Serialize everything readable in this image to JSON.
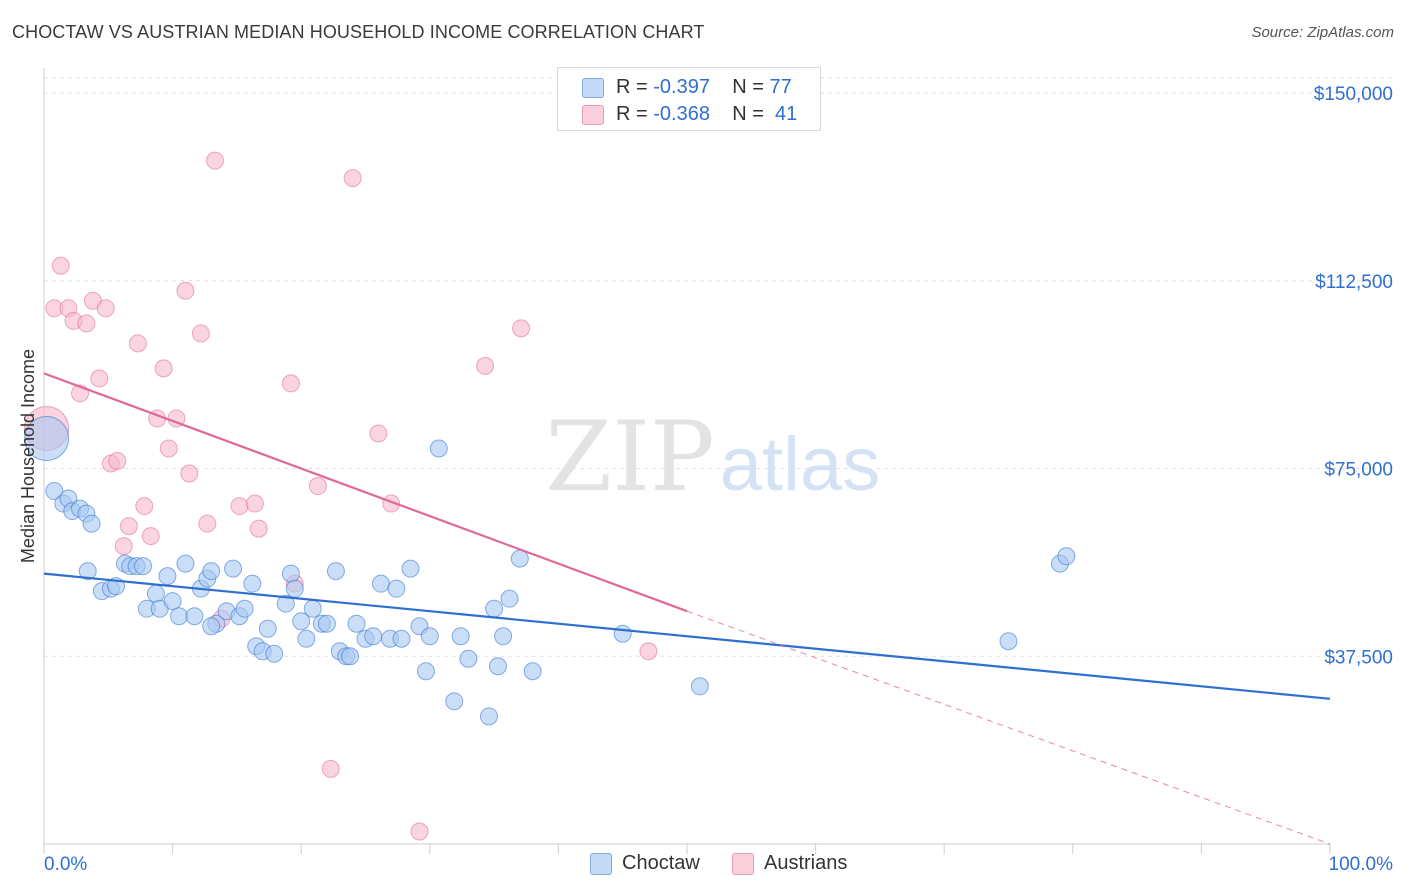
{
  "title": "CHOCTAW VS AUSTRIAN MEDIAN HOUSEHOLD INCOME CORRELATION CHART",
  "source": "Source: ZipAtlas.com",
  "watermark": {
    "zip": "ZIP",
    "atlas": "atlas"
  },
  "legend": {
    "rows": [
      {
        "r_label": "R = ",
        "r_value": "-0.397",
        "n_label": "N = ",
        "n_value": "77",
        "color": "#a9c8f2"
      },
      {
        "r_label": "R = ",
        "r_value": "-0.368",
        "n_label": "N = ",
        "n_value": "41",
        "color": "#f6b8c9"
      }
    ]
  },
  "bottom_legend": [
    {
      "label": "Choctaw",
      "color": "#a9c8f2"
    },
    {
      "label": "Austrians",
      "color": "#f6b8c9"
    }
  ],
  "chart_data": {
    "type": "scatter",
    "title": "CHOCTAW VS AUSTRIAN MEDIAN HOUSEHOLD INCOME CORRELATION CHART",
    "xlabel": "",
    "ylabel": "Median Household Income",
    "xlim": [
      0,
      100
    ],
    "ylim": [
      0,
      155000
    ],
    "x_tick_labels": [
      "0.0%",
      "100.0%"
    ],
    "y_ticks": [
      37500,
      75000,
      112500,
      150000
    ],
    "y_tick_labels": [
      "$37,500",
      "$75,000",
      "$112,500",
      "$150,000"
    ],
    "grid": true,
    "legend_position": "top-center",
    "series": [
      {
        "name": "Choctaw",
        "color": "#2f6fd0",
        "fill": "#a9c8f2",
        "trend": {
          "x": [
            0,
            100
          ],
          "y": [
            54000,
            29000
          ],
          "style": "solid"
        },
        "points": [
          [
            0.2,
            81000
          ],
          [
            0.8,
            70500
          ],
          [
            1.5,
            68000
          ],
          [
            1.9,
            69000
          ],
          [
            2.2,
            66500
          ],
          [
            2.8,
            67000
          ],
          [
            3.3,
            66000
          ],
          [
            3.7,
            64000
          ],
          [
            3.4,
            54500
          ],
          [
            4.5,
            50500
          ],
          [
            5.2,
            51000
          ],
          [
            5.6,
            51500
          ],
          [
            6.3,
            56000
          ],
          [
            6.7,
            55500
          ],
          [
            7.2,
            55500
          ],
          [
            7.7,
            55500
          ],
          [
            8.0,
            47000
          ],
          [
            8.7,
            50000
          ],
          [
            9.0,
            47000
          ],
          [
            9.6,
            53500
          ],
          [
            10.0,
            48500
          ],
          [
            10.5,
            45500
          ],
          [
            11.0,
            56000
          ],
          [
            11.7,
            45500
          ],
          [
            12.2,
            51000
          ],
          [
            12.7,
            53000
          ],
          [
            13.0,
            54500
          ],
          [
            13.4,
            44000
          ],
          [
            14.2,
            46500
          ],
          [
            14.7,
            55000
          ],
          [
            15.2,
            45500
          ],
          [
            15.6,
            47000
          ],
          [
            16.2,
            52000
          ],
          [
            16.5,
            39500
          ],
          [
            17.0,
            38500
          ],
          [
            17.4,
            43000
          ],
          [
            17.9,
            38000
          ],
          [
            18.8,
            48000
          ],
          [
            19.2,
            54000
          ],
          [
            19.5,
            51000
          ],
          [
            20.0,
            44500
          ],
          [
            20.4,
            41000
          ],
          [
            20.9,
            47000
          ],
          [
            21.6,
            44000
          ],
          [
            22.0,
            44000
          ],
          [
            22.7,
            54500
          ],
          [
            23.0,
            38500
          ],
          [
            23.5,
            37500
          ],
          [
            23.8,
            37500
          ],
          [
            24.3,
            44000
          ],
          [
            25.0,
            41000
          ],
          [
            25.6,
            41500
          ],
          [
            26.2,
            52000
          ],
          [
            26.9,
            41000
          ],
          [
            27.4,
            51000
          ],
          [
            27.8,
            41000
          ],
          [
            28.5,
            55000
          ],
          [
            29.2,
            43500
          ],
          [
            29.7,
            34500
          ],
          [
            30.0,
            41500
          ],
          [
            30.7,
            79000
          ],
          [
            31.9,
            28500
          ],
          [
            32.4,
            41500
          ],
          [
            33.0,
            37000
          ],
          [
            34.6,
            25500
          ],
          [
            35.0,
            47000
          ],
          [
            35.3,
            35500
          ],
          [
            35.7,
            41500
          ],
          [
            36.2,
            49000
          ],
          [
            37.0,
            57000
          ],
          [
            38.0,
            34500
          ],
          [
            45.0,
            42000
          ],
          [
            51.0,
            31500
          ],
          [
            75.0,
            40500
          ],
          [
            79.0,
            56000
          ],
          [
            79.5,
            57500
          ],
          [
            13.0,
            43500
          ]
        ]
      },
      {
        "name": "Austrians",
        "color": "#e0679a",
        "fill": "#f6b8c9",
        "trend": {
          "x": [
            0,
            50
          ],
          "y": [
            94000,
            46500
          ],
          "style": "solid",
          "extended_to": [
            100,
            0
          ]
        },
        "points": [
          [
            0.2,
            83000
          ],
          [
            0.8,
            107000
          ],
          [
            1.3,
            115500
          ],
          [
            1.9,
            107000
          ],
          [
            2.3,
            104500
          ],
          [
            2.8,
            90000
          ],
          [
            3.3,
            104000
          ],
          [
            3.8,
            108500
          ],
          [
            4.3,
            93000
          ],
          [
            4.8,
            107000
          ],
          [
            5.2,
            76000
          ],
          [
            5.7,
            76500
          ],
          [
            6.2,
            59500
          ],
          [
            6.6,
            63500
          ],
          [
            7.3,
            100000
          ],
          [
            7.8,
            67500
          ],
          [
            8.3,
            61500
          ],
          [
            8.8,
            85000
          ],
          [
            9.3,
            95000
          ],
          [
            9.7,
            79000
          ],
          [
            10.3,
            85000
          ],
          [
            11.0,
            110500
          ],
          [
            11.3,
            74000
          ],
          [
            12.2,
            102000
          ],
          [
            12.7,
            64000
          ],
          [
            13.3,
            136500
          ],
          [
            13.8,
            45000
          ],
          [
            15.2,
            67500
          ],
          [
            16.4,
            68000
          ],
          [
            16.7,
            63000
          ],
          [
            19.2,
            92000
          ],
          [
            19.5,
            52000
          ],
          [
            21.3,
            71500
          ],
          [
            22.3,
            15000
          ],
          [
            24.0,
            133000
          ],
          [
            26.0,
            82000
          ],
          [
            27.0,
            68000
          ],
          [
            29.2,
            2500
          ],
          [
            34.3,
            95500
          ],
          [
            37.1,
            103000
          ],
          [
            47.0,
            38500
          ]
        ]
      }
    ]
  }
}
